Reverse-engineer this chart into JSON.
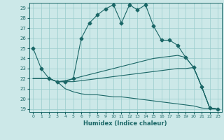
{
  "xlabel": "Humidex (Indice chaleur)",
  "bg_color": "#cce8e8",
  "grid_color": "#99cccc",
  "line_color": "#1a6666",
  "xlim": [
    -0.5,
    23.5
  ],
  "ylim": [
    18.7,
    29.5
  ],
  "yticks": [
    19,
    20,
    21,
    22,
    23,
    24,
    25,
    26,
    27,
    28,
    29
  ],
  "xticks": [
    0,
    1,
    2,
    3,
    4,
    5,
    6,
    7,
    8,
    9,
    10,
    11,
    12,
    13,
    14,
    15,
    16,
    17,
    18,
    19,
    20,
    21,
    22,
    23
  ],
  "lines": [
    {
      "x": [
        0,
        1,
        2,
        3,
        4,
        5,
        6,
        7,
        8,
        9,
        10,
        11,
        12,
        13,
        14,
        15,
        16,
        17,
        18,
        19,
        20,
        21,
        22,
        23
      ],
      "y": [
        25,
        23,
        22,
        21.7,
        21.7,
        22.0,
        26.0,
        27.5,
        28.3,
        28.9,
        29.3,
        27.5,
        29.3,
        28.8,
        29.3,
        27.2,
        25.8,
        25.8,
        25.3,
        24.1,
        23.1,
        21.2,
        19.1,
        19.0
      ],
      "marker": "D",
      "markersize": 2.5
    },
    {
      "x": [
        0,
        1,
        2,
        3,
        4,
        5,
        6,
        7,
        8,
        9,
        10,
        11,
        12,
        13,
        14,
        15,
        16,
        17,
        18,
        19,
        20,
        21,
        22,
        23
      ],
      "y": [
        22.0,
        22.0,
        22.0,
        21.7,
        21.8,
        22.0,
        22.2,
        22.4,
        22.6,
        22.8,
        23.0,
        23.2,
        23.4,
        23.6,
        23.8,
        24.0,
        24.1,
        24.2,
        24.3,
        24.1,
        23.1,
        21.2,
        19.1,
        19.0
      ],
      "marker": null,
      "markersize": 0
    },
    {
      "x": [
        0,
        1,
        2,
        3,
        4,
        5,
        6,
        7,
        8,
        9,
        10,
        11,
        12,
        13,
        14,
        15,
        16,
        17,
        18,
        19,
        20,
        21,
        22,
        23
      ],
      "y": [
        22.0,
        22.0,
        22.0,
        21.7,
        21.7,
        21.7,
        21.8,
        21.9,
        22.0,
        22.1,
        22.2,
        22.3,
        22.4,
        22.5,
        22.6,
        22.7,
        22.8,
        22.9,
        23.0,
        23.0,
        23.1,
        21.2,
        19.1,
        19.0
      ],
      "marker": null,
      "markersize": 0
    },
    {
      "x": [
        0,
        1,
        2,
        3,
        4,
        5,
        6,
        7,
        8,
        9,
        10,
        11,
        12,
        13,
        14,
        15,
        16,
        17,
        18,
        19,
        20,
        21,
        22,
        23
      ],
      "y": [
        22.0,
        22.0,
        22.0,
        21.7,
        21.0,
        20.7,
        20.5,
        20.4,
        20.4,
        20.3,
        20.2,
        20.2,
        20.1,
        20.0,
        19.9,
        19.8,
        19.7,
        19.6,
        19.5,
        19.4,
        19.3,
        19.1,
        19.0,
        19.0
      ],
      "marker": null,
      "markersize": 0
    }
  ]
}
